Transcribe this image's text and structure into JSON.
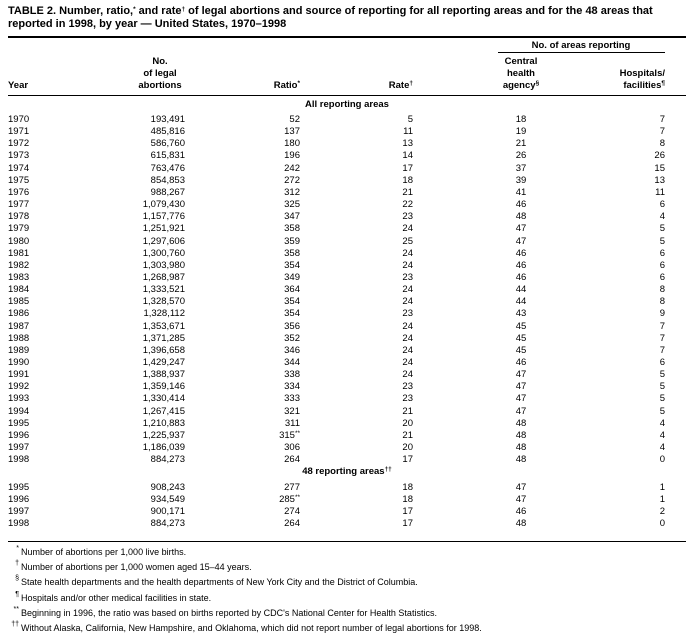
{
  "title": [
    "TABLE 2. Number, ratio,",
    "*",
    " and rate",
    "†",
    " of legal abortions and source of reporting for all reporting areas and for the 48 areas that reported in 1998, by year — United States, 1970–1998"
  ],
  "group_header": "No. of areas reporting",
  "columns": [
    {
      "lines": [
        "Year"
      ]
    },
    {
      "lines": [
        "No.",
        "of legal",
        "abortions"
      ]
    },
    {
      "lines": [
        "Ratio"
      ],
      "mark": "*"
    },
    {
      "lines": [
        "Rate"
      ],
      "mark": "†"
    },
    {
      "lines": [
        "Central",
        "health",
        "agency"
      ],
      "mark": "§"
    },
    {
      "lines": [
        "Hospitals/",
        "facilities"
      ],
      "mark": "¶"
    }
  ],
  "sections": [
    {
      "label": [
        "All reporting areas"
      ],
      "rows": [
        [
          "1970",
          "193,491",
          "52",
          "5",
          "18",
          "7"
        ],
        [
          "1971",
          "485,816",
          "137",
          "11",
          "19",
          "7"
        ],
        [
          "1972",
          "586,760",
          "180",
          "13",
          "21",
          "8"
        ],
        [
          "1973",
          "615,831",
          "196",
          "14",
          "26",
          "26"
        ],
        [
          "1974",
          "763,476",
          "242",
          "17",
          "37",
          "15"
        ],
        [
          "1975",
          "854,853",
          "272",
          "18",
          "39",
          "13"
        ],
        [
          "1976",
          "988,267",
          "312",
          "21",
          "41",
          "11"
        ],
        [
          "1977",
          "1,079,430",
          "325",
          "22",
          "46",
          "6"
        ],
        [
          "1978",
          "1,157,776",
          "347",
          "23",
          "48",
          "4"
        ],
        [
          "1979",
          "1,251,921",
          "358",
          "24",
          "47",
          "5"
        ],
        [
          "1980",
          "1,297,606",
          "359",
          "25",
          "47",
          "5"
        ],
        [
          "1981",
          "1,300,760",
          "358",
          "24",
          "46",
          "6"
        ],
        [
          "1982",
          "1,303,980",
          "354",
          "24",
          "46",
          "6"
        ],
        [
          "1983",
          "1,268,987",
          "349",
          "23",
          "46",
          "6"
        ],
        [
          "1984",
          "1,333,521",
          "364",
          "24",
          "44",
          "8"
        ],
        [
          "1985",
          "1,328,570",
          "354",
          "24",
          "44",
          "8"
        ],
        [
          "1986",
          "1,328,112",
          "354",
          "23",
          "43",
          "9"
        ],
        [
          "1987",
          "1,353,671",
          "356",
          "24",
          "45",
          "7"
        ],
        [
          "1988",
          "1,371,285",
          "352",
          "24",
          "45",
          "7"
        ],
        [
          "1989",
          "1,396,658",
          "346",
          "24",
          "45",
          "7"
        ],
        [
          "1990",
          "1,429,247",
          "344",
          "24",
          "46",
          "6"
        ],
        [
          "1991",
          "1,388,937",
          "338",
          "24",
          "47",
          "5"
        ],
        [
          "1992",
          "1,359,146",
          "334",
          "23",
          "47",
          "5"
        ],
        [
          "1993",
          "1,330,414",
          "333",
          "23",
          "47",
          "5"
        ],
        [
          "1994",
          "1,267,415",
          "321",
          "21",
          "47",
          "5"
        ],
        [
          "1995",
          "1,210,883",
          "311",
          "20",
          "48",
          "4"
        ],
        [
          "1996",
          "1,225,937",
          [
            "315",
            "**"
          ],
          "21",
          "48",
          "4"
        ],
        [
          "1997",
          "1,186,039",
          "306",
          "20",
          "48",
          "4"
        ],
        [
          "1998",
          "884,273",
          "264",
          "17",
          "48",
          "0"
        ]
      ]
    },
    {
      "label": [
        "48 reporting areas",
        "††"
      ],
      "rows": [
        [
          "1995",
          "908,243",
          "277",
          "18",
          "47",
          "1"
        ],
        [
          "1996",
          "934,549",
          [
            "285",
            "**"
          ],
          "18",
          "47",
          "1"
        ],
        [
          "1997",
          "900,171",
          "274",
          "17",
          "46",
          "2"
        ],
        [
          "1998",
          "884,273",
          "264",
          "17",
          "48",
          "0"
        ]
      ]
    }
  ],
  "footnotes": [
    {
      "symbol": "*",
      "text": "Number of abortions per 1,000 live births."
    },
    {
      "symbol": "†",
      "text": "Number of abortions per 1,000 women aged 15–44 years."
    },
    {
      "symbol": "§",
      "text": "State health departments and the health departments of New York City and the District of Columbia."
    },
    {
      "symbol": "¶",
      "text": "Hospitals and/or other medical facilities in state."
    },
    {
      "symbol": "**",
      "text": "Beginning in 1996, the ratio was based on births reported by CDC's National Center for Health Statistics."
    },
    {
      "symbol": "††",
      "text": "Without Alaska, California, New Hampshire, and Oklahoma, which did not report number of legal abortions for 1998."
    }
  ]
}
